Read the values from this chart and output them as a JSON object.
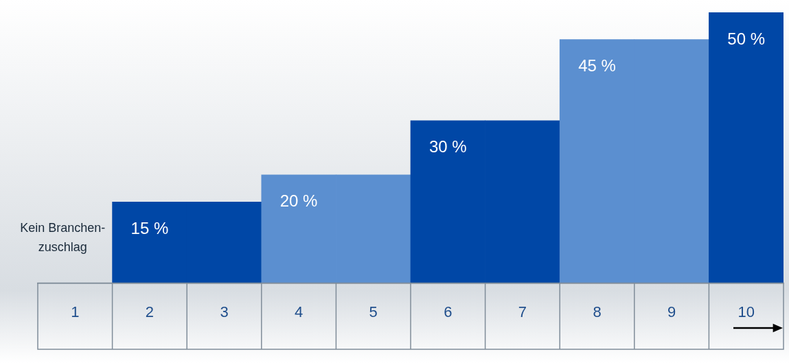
{
  "chart_data": {
    "type": "bar",
    "categories": [
      "1",
      "2",
      "3",
      "4",
      "5",
      "6",
      "7",
      "8",
      "9",
      "10"
    ],
    "values": [
      null,
      15,
      15,
      20,
      20,
      30,
      30,
      45,
      45,
      50
    ],
    "colors": [
      "#0047a6",
      "#0047a6",
      "#0047a6",
      "#5b8fd0",
      "#5b8fd0",
      "#0047a6",
      "#0047a6",
      "#5b8fd0",
      "#5b8fd0",
      "#0047a6"
    ],
    "value_labels": [
      null,
      "15 %",
      null,
      "20 %",
      null,
      "30 %",
      null,
      "45 %",
      null,
      "50 %"
    ],
    "annotations": [
      "Kein Branchen-\nzuschlag"
    ],
    "grid": false,
    "legend": false
  }
}
